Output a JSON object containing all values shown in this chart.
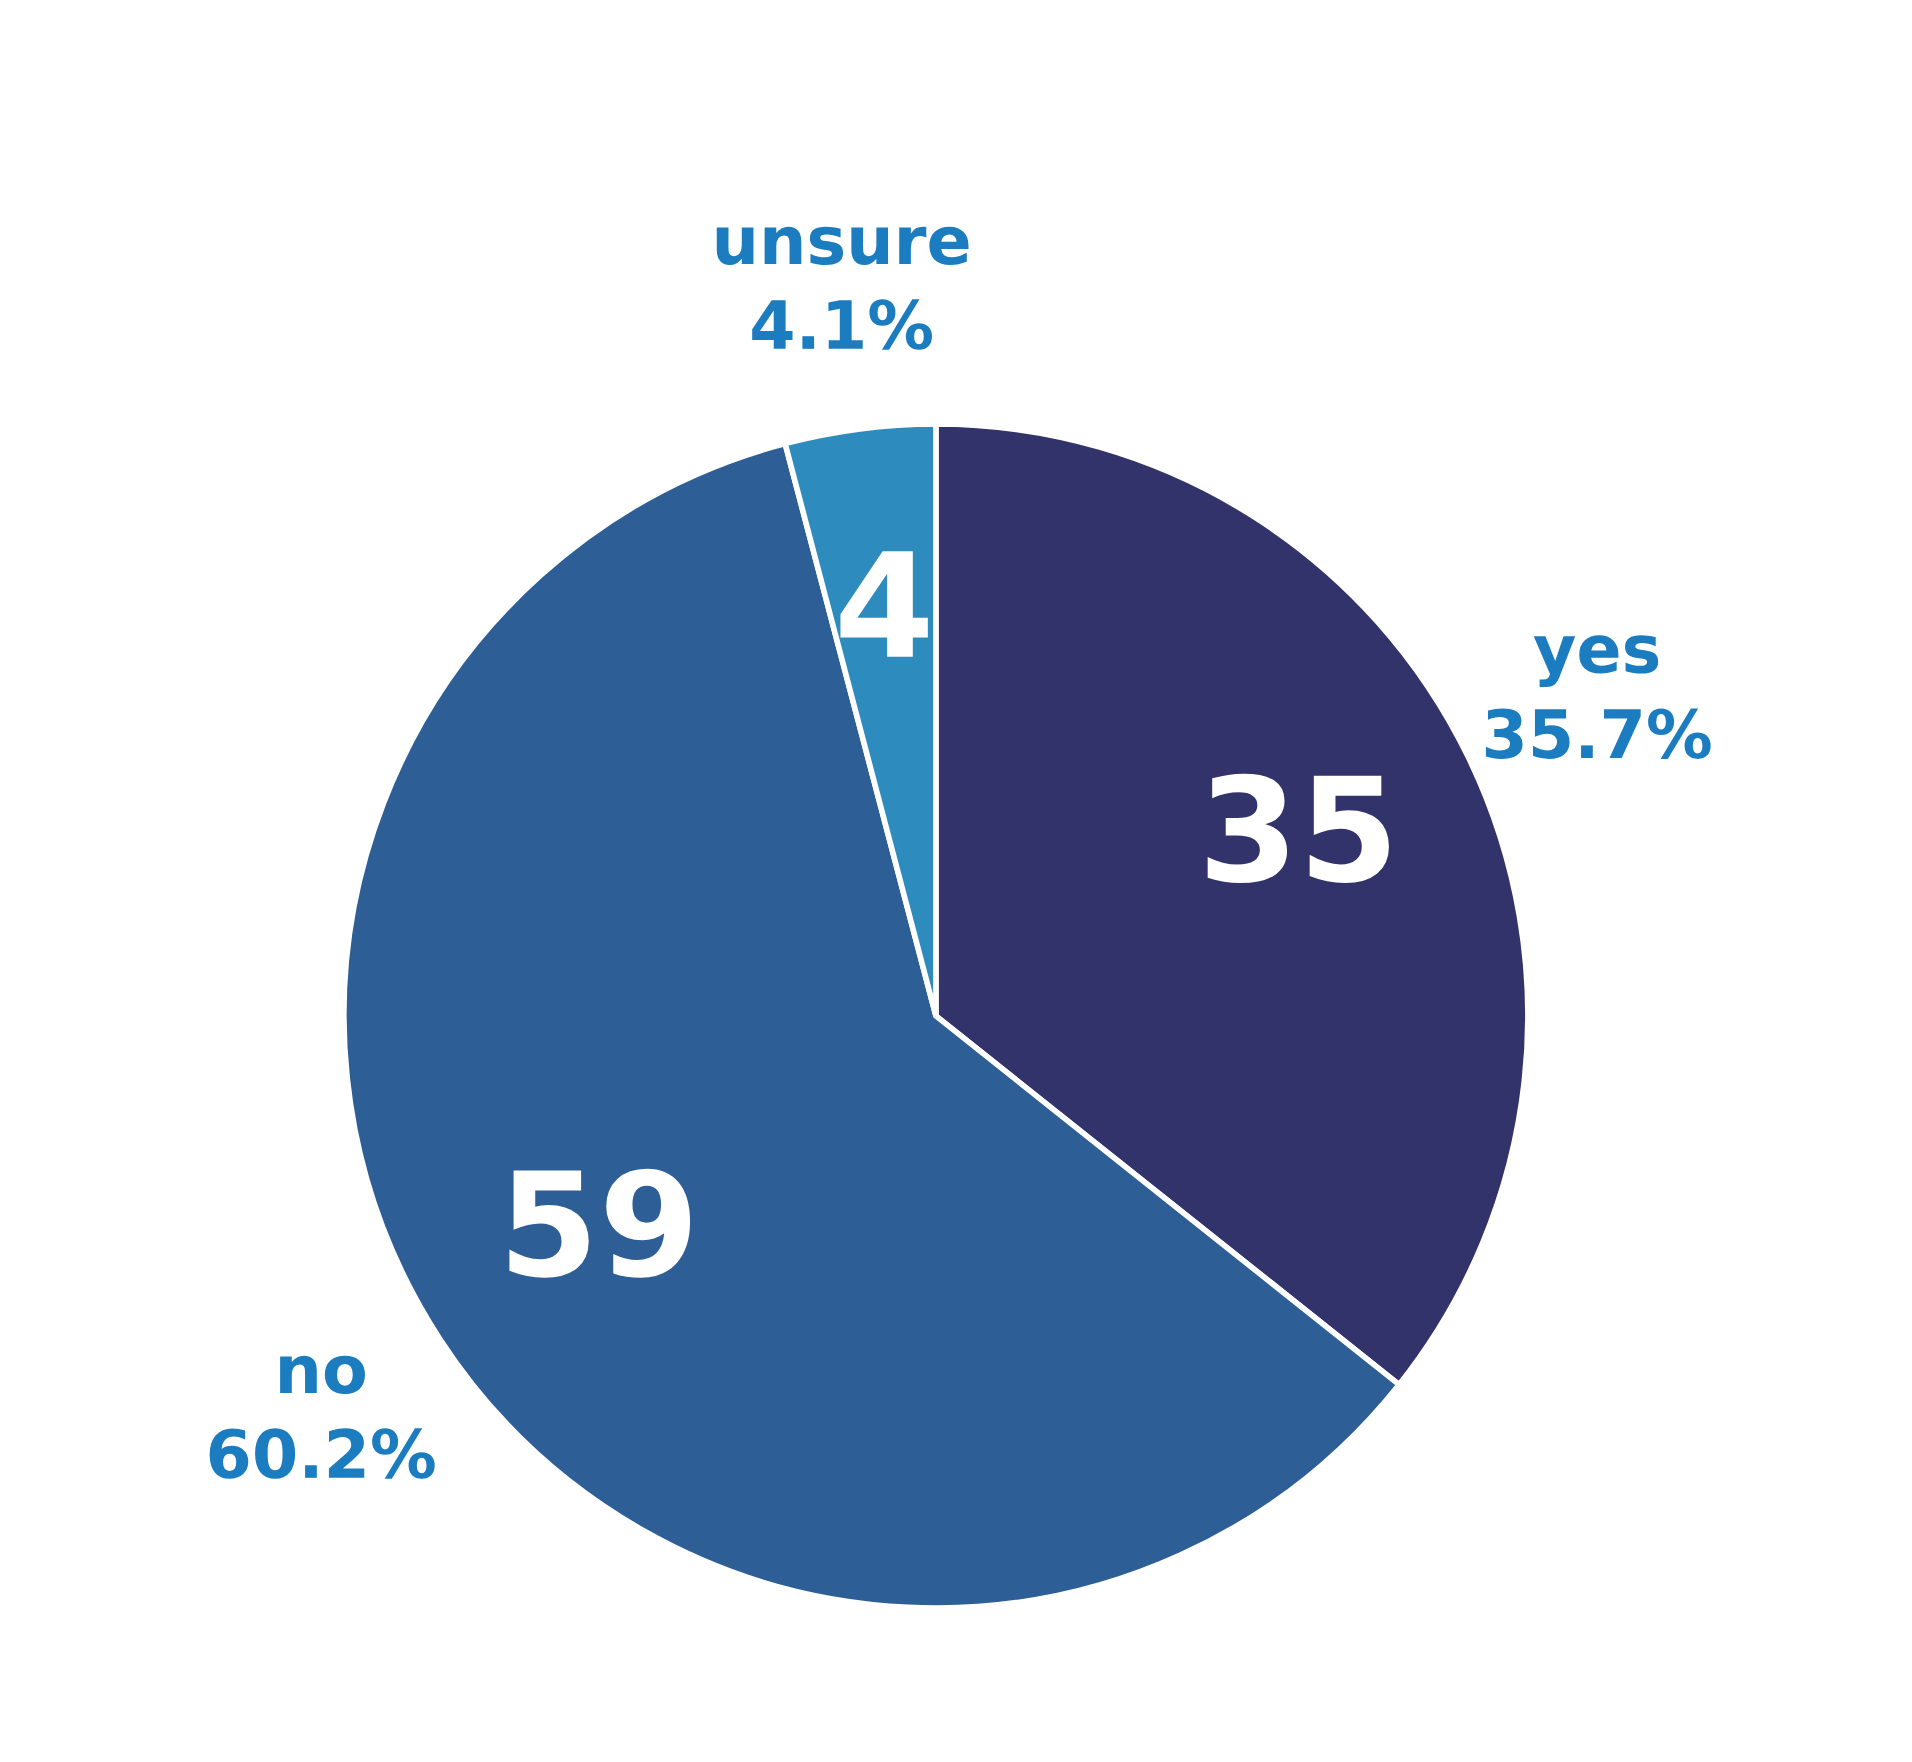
{
  "chart_data": {
    "type": "pie",
    "categories": [
      "yes",
      "no",
      "unsure"
    ],
    "values": [
      35.7,
      60.2,
      4.1
    ],
    "colors": [
      "#31336a",
      "#2e5e96",
      "#2e8bbe"
    ],
    "value_labels": [
      "35.7%",
      "60.2%",
      "4.1%"
    ],
    "annotations": [
      "35",
      "59",
      "4"
    ],
    "legend": false
  }
}
